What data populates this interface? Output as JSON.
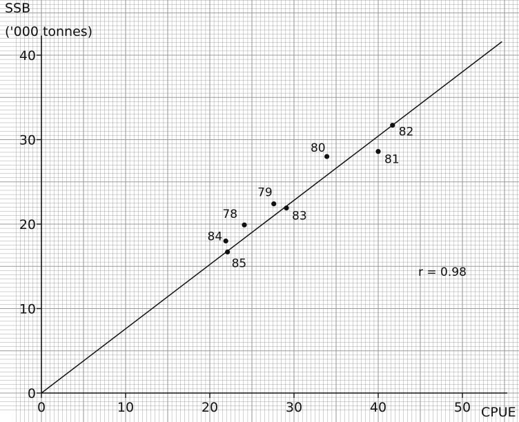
{
  "chart_data": {
    "type": "scatter",
    "title": "",
    "ylabel_line1": "SSB",
    "ylabel_line2": "('000 tonnes)",
    "xlabel": "CPUE",
    "xlim": [
      0,
      55
    ],
    "ylim": [
      0,
      42
    ],
    "x_ticks": [
      0,
      10,
      20,
      30,
      40,
      50
    ],
    "y_ticks": [
      0,
      10,
      20,
      30,
      40
    ],
    "x_tick_labels": [
      "0",
      "10",
      "20",
      "30",
      "40",
      "50"
    ],
    "y_tick_labels": [
      "0",
      "10",
      "20",
      "30",
      "40"
    ],
    "grid": true,
    "points": [
      {
        "label": "78",
        "x": 24.1,
        "y": 19.9
      },
      {
        "label": "79",
        "x": 27.6,
        "y": 22.4
      },
      {
        "label": "80",
        "x": 33.9,
        "y": 28.0
      },
      {
        "label": "81",
        "x": 40.0,
        "y": 28.6
      },
      {
        "label": "82",
        "x": 41.7,
        "y": 31.7
      },
      {
        "label": "83",
        "x": 29.1,
        "y": 21.9
      },
      {
        "label": "84",
        "x": 21.9,
        "y": 18.0
      },
      {
        "label": "85",
        "x": 22.1,
        "y": 16.7
      }
    ],
    "regression_line": {
      "x": [
        0,
        54.7
      ],
      "y": [
        0,
        41.6
      ]
    },
    "annotation": "r = 0.98",
    "colors": {
      "grid": "#9a9a9a",
      "ink": "#111111"
    }
  }
}
